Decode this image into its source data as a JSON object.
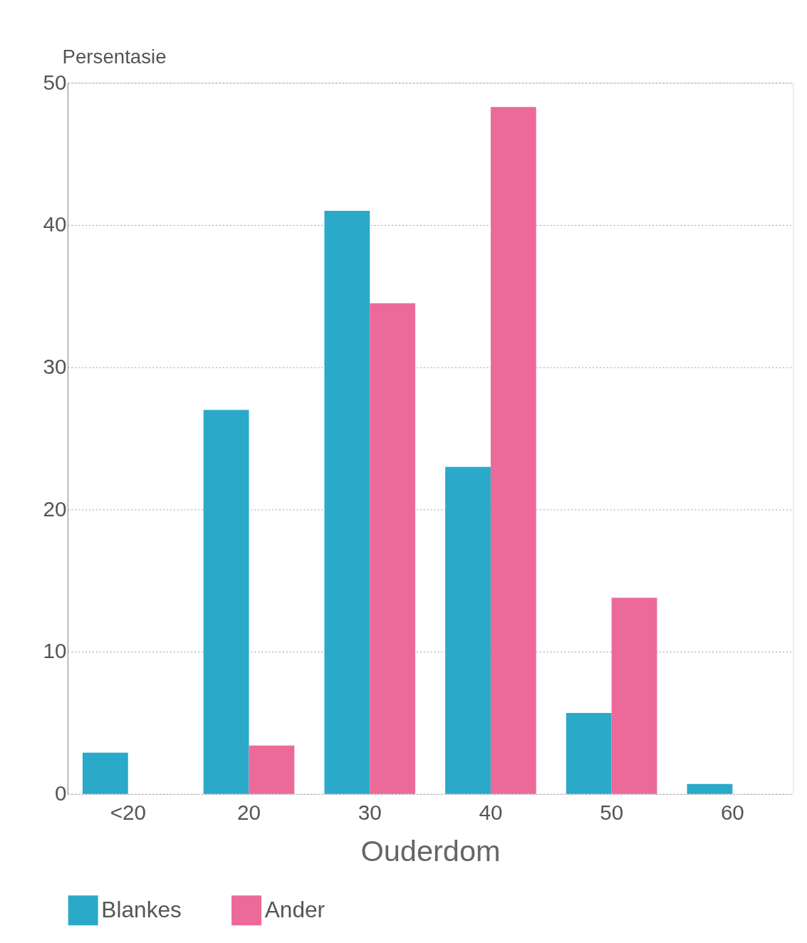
{
  "chart_data": {
    "type": "bar",
    "xlabel": "Ouderdom",
    "ylabel": "Persentasie",
    "categories": [
      "<20",
      "20",
      "30",
      "40",
      "50",
      "60"
    ],
    "series": [
      {
        "name": "Blankes",
        "color": "#2aa9c9",
        "values": [
          2.9,
          27,
          41,
          23,
          5.7,
          0.7
        ]
      },
      {
        "name": "Ander",
        "color": "#ec6a9a",
        "values": [
          0,
          3.4,
          34.5,
          48.3,
          13.8,
          0
        ]
      }
    ],
    "ylim": [
      0,
      50
    ],
    "yticks": [
      0,
      10,
      20,
      30,
      40,
      50
    ],
    "grid": "y",
    "legend": "bottom"
  }
}
